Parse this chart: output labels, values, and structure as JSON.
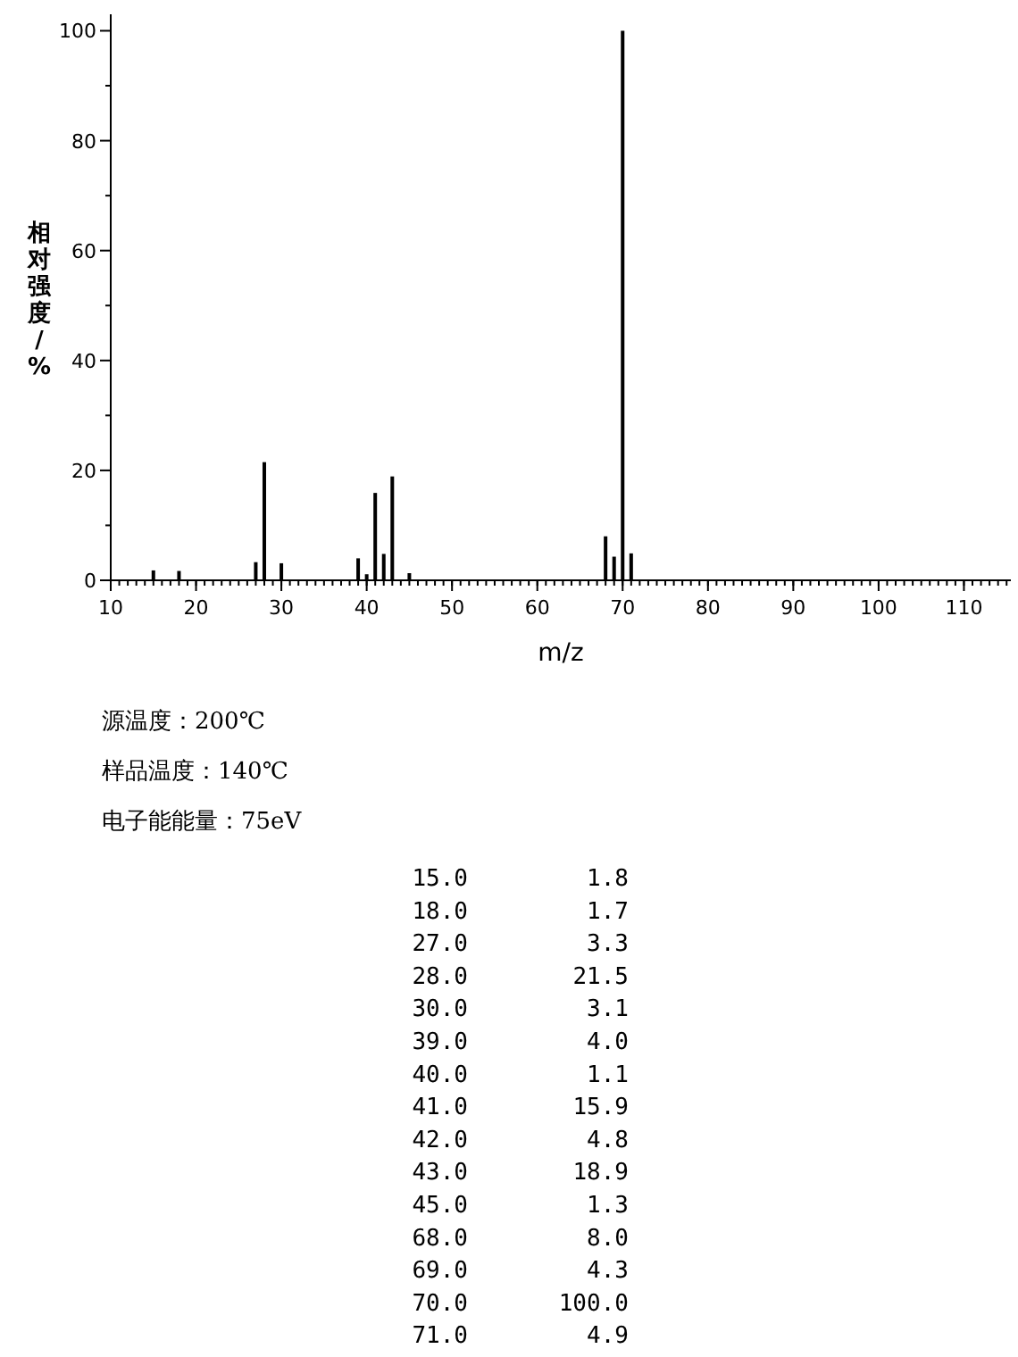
{
  "chart_data": {
    "type": "bar",
    "xlabel": "m/z",
    "ylabel": "相对强度/%",
    "x": [
      15,
      18,
      27,
      28,
      30,
      39,
      40,
      41,
      42,
      43,
      45,
      68,
      69,
      70,
      71
    ],
    "values": [
      1.8,
      1.7,
      3.3,
      21.5,
      3.1,
      4.0,
      1.1,
      15.9,
      4.8,
      18.9,
      1.3,
      8.0,
      4.3,
      100.0,
      4.9
    ],
    "color": "#000000",
    "xlim": [
      10,
      115.5
    ],
    "xticks": [
      10,
      20,
      30,
      40,
      50,
      60,
      70,
      80,
      90,
      100,
      110
    ],
    "ylim": [
      0,
      103
    ],
    "yticks": [
      0,
      20,
      40,
      60,
      80,
      100
    ],
    "grid": false,
    "annotations": [
      "源温度：200℃",
      "样品温度：140℃",
      "电子能能量：75eV",
      "15.0",
      "1.8",
      "18.0",
      "1.7",
      "27.0",
      "3.3",
      "28.0",
      "21.5",
      "30.0",
      "3.1",
      "39.0",
      "4.0",
      "40.0",
      "1.1",
      "41.0",
      "15.9",
      "42.0",
      "4.8",
      "43.0",
      "18.9",
      "45.0",
      "1.3",
      "68.0",
      "8.0",
      "69.0",
      "4.3",
      "70.0",
      "100.0",
      "71.0",
      "4.9"
    ]
  }
}
